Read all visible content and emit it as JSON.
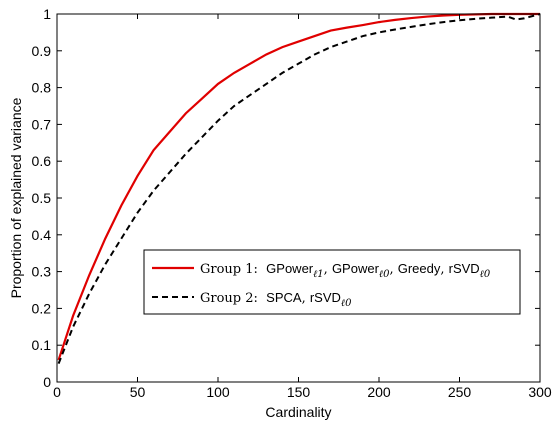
{
  "chart_data": {
    "type": "line",
    "title": "",
    "xlabel": "Cardinality",
    "ylabel": "Proportion of explained variance",
    "xlim": [
      0,
      300
    ],
    "ylim": [
      0,
      1
    ],
    "grid": false,
    "legend_position": "center-right",
    "x_ticks": [
      "0",
      "50",
      "100",
      "150",
      "200",
      "250",
      "300"
    ],
    "y_ticks": [
      "0",
      "0.1",
      "0.2",
      "0.3",
      "0.4",
      "0.5",
      "0.6",
      "0.7",
      "0.8",
      "0.9",
      "1"
    ],
    "series": [
      {
        "name": "Group 1: GPowerℓ1, GPowerℓ0, Greedy, rSVDℓ0",
        "legend_prefix": "Group 1:",
        "legend_parts": [
          {
            "base": "GPower",
            "sub": "ℓ1"
          },
          {
            "base": "GPower",
            "sub": "ℓ0"
          },
          {
            "base": "Greedy",
            "sub": ""
          },
          {
            "base": "rSVD",
            "sub": "ℓ0"
          }
        ],
        "color": "#e00000",
        "style": "solid",
        "x": [
          1,
          10,
          20,
          30,
          40,
          50,
          60,
          70,
          80,
          90,
          100,
          110,
          120,
          130,
          140,
          150,
          160,
          170,
          180,
          190,
          200,
          210,
          220,
          230,
          240,
          250,
          260,
          270,
          280,
          290,
          300
        ],
        "y": [
          0.06,
          0.18,
          0.29,
          0.39,
          0.48,
          0.56,
          0.63,
          0.68,
          0.73,
          0.77,
          0.81,
          0.84,
          0.865,
          0.89,
          0.91,
          0.925,
          0.94,
          0.955,
          0.963,
          0.97,
          0.978,
          0.984,
          0.989,
          0.993,
          0.996,
          0.998,
          0.999,
          1.0,
          1.0,
          1.0,
          1.0
        ]
      },
      {
        "name": "Group 2: SPCA, rSVDℓ0",
        "legend_prefix": "Group 2:",
        "legend_parts": [
          {
            "base": "SPCA",
            "sub": ""
          },
          {
            "base": "rSVD",
            "sub": "ℓ0"
          }
        ],
        "color": "#000000",
        "style": "dashed",
        "x": [
          1,
          10,
          20,
          30,
          40,
          50,
          60,
          70,
          80,
          90,
          100,
          110,
          120,
          130,
          140,
          150,
          160,
          170,
          180,
          190,
          200,
          210,
          220,
          230,
          240,
          250,
          260,
          270,
          280,
          285,
          290,
          300
        ],
        "y": [
          0.05,
          0.15,
          0.24,
          0.32,
          0.39,
          0.46,
          0.52,
          0.57,
          0.62,
          0.665,
          0.71,
          0.75,
          0.78,
          0.81,
          0.84,
          0.865,
          0.89,
          0.91,
          0.925,
          0.94,
          0.95,
          0.958,
          0.965,
          0.972,
          0.978,
          0.983,
          0.987,
          0.99,
          0.993,
          0.985,
          0.988,
          1.0
        ]
      }
    ]
  }
}
